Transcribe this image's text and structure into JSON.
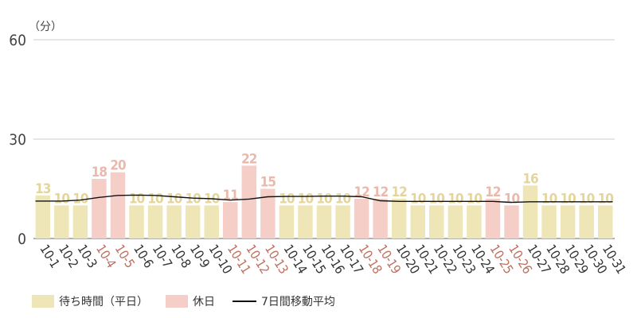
{
  "chart_data": {
    "type": "bar",
    "unit_label": "（分）",
    "yticks": [
      0,
      30,
      60
    ],
    "ylim": [
      0,
      60
    ],
    "grid": true,
    "categories": [
      "10-1",
      "10-2",
      "10-3",
      "10-4",
      "10-5",
      "10-6",
      "10-7",
      "10-8",
      "10-9",
      "10-10",
      "10-11",
      "10-12",
      "10-13",
      "10-14",
      "10-15",
      "10-16",
      "10-17",
      "10-18",
      "10-19",
      "10-20",
      "10-21",
      "10-22",
      "10-23",
      "10-24",
      "10-25",
      "10-26",
      "10-27",
      "10-28",
      "10-29",
      "10-30",
      "10-31"
    ],
    "values": [
      13,
      10,
      10,
      18,
      20,
      10,
      10,
      10,
      10,
      10,
      11,
      22,
      15,
      10,
      10,
      10,
      10,
      12,
      12,
      12,
      10,
      10,
      10,
      10,
      12,
      10,
      16,
      10,
      10,
      10,
      10
    ],
    "holiday": [
      false,
      false,
      false,
      true,
      true,
      false,
      false,
      false,
      false,
      false,
      true,
      true,
      true,
      false,
      false,
      false,
      false,
      true,
      true,
      false,
      false,
      false,
      false,
      false,
      true,
      true,
      false,
      false,
      false,
      false,
      false
    ],
    "moving_average": [
      11.3,
      11.3,
      11.6,
      12.4,
      13.0,
      13.1,
      13.0,
      12.6,
      12.2,
      12.0,
      11.6,
      11.9,
      12.6,
      12.7,
      12.7,
      12.8,
      12.8,
      12.6,
      11.4,
      11.2,
      11.2,
      11.2,
      11.2,
      11.2,
      11.2,
      10.9,
      11.1,
      11.1,
      11.1,
      11.1,
      11.1
    ],
    "series": [
      {
        "name": "待ち時間（平日）",
        "color": "#efe6b8"
      },
      {
        "name": "休日",
        "color": "#f5cfc7"
      },
      {
        "name": "7日間移動平均",
        "color": "#111111"
      }
    ],
    "label_colors": {
      "weekday_value": "#e3d59c",
      "holiday_value": "#ebb9ac",
      "weekday_tick": "#333333",
      "holiday_tick": "#c0705e"
    }
  }
}
